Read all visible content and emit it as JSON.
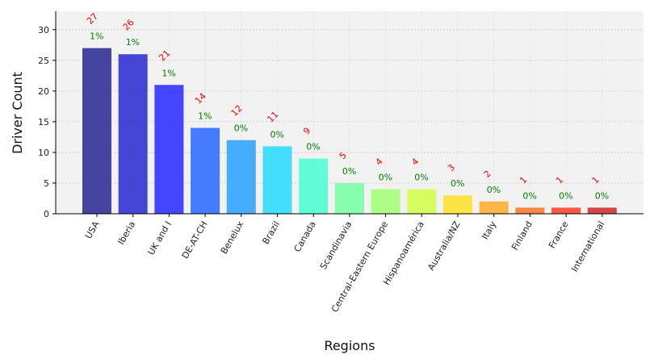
{
  "chart_data": {
    "type": "bar",
    "xlabel": "Regions",
    "ylabel": "Driver Count",
    "ylim": [
      0,
      33
    ],
    "yticks": [
      0,
      5,
      10,
      15,
      20,
      25,
      30
    ],
    "grid": true,
    "categories": [
      "USA",
      "Iberia",
      "UK and I",
      "DE-AT-CH",
      "Benelux",
      "Brazil",
      "Canada",
      "Scandinavia",
      "Central-Eastern Europe",
      "Hispanoamérica",
      "Australia/NZ",
      "Italy",
      "Finland",
      "France",
      "International"
    ],
    "values": [
      27,
      26,
      21,
      14,
      12,
      11,
      9,
      5,
      4,
      4,
      3,
      2,
      1,
      1,
      1
    ],
    "percent_labels": [
      "1%",
      "1%",
      "1%",
      "1%",
      "0%",
      "0%",
      "0%",
      "0%",
      "0%",
      "0%",
      "0%",
      "0%",
      "0%",
      "0%",
      "0%"
    ],
    "count_labels": [
      "27",
      "26",
      "21",
      "14",
      "12",
      "11",
      "9",
      "5",
      "4",
      "4",
      "3",
      "2",
      "1",
      "1",
      "1"
    ],
    "bar_colors": [
      "#1f1f8f",
      "#1f1fcf",
      "#1f1fff",
      "#1f62ff",
      "#1f9dff",
      "#1fd8ff",
      "#3fffcf",
      "#6fff9f",
      "#9fff6f",
      "#cfff3f",
      "#ffe01f",
      "#ffa81f",
      "#ff6e1f",
      "#ff331f",
      "#cf1f1f"
    ],
    "count_label_color": "#ff0000",
    "percent_label_color": "#008000"
  }
}
